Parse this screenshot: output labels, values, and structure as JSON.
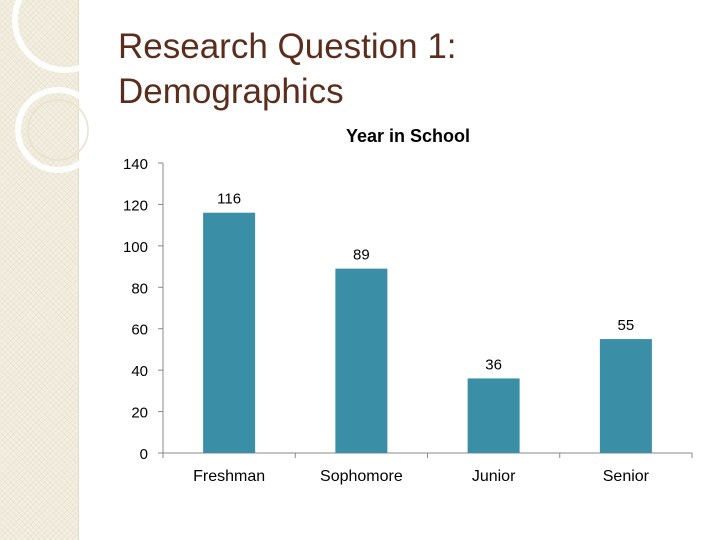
{
  "slide": {
    "title_line1": "Research Question 1:",
    "title_line2": "Demographics"
  },
  "colors": {
    "bar": "#3a8fa6",
    "title": "#5a2d1c",
    "axis": "#888888"
  },
  "chart_data": {
    "type": "bar",
    "title": "Year in School",
    "categories": [
      "Freshman",
      "Sophomore",
      "Junior",
      "Senior"
    ],
    "values": [
      116,
      89,
      36,
      55
    ],
    "data_labels": [
      "116",
      "89",
      "36",
      "55"
    ],
    "ylim": [
      0,
      140
    ],
    "yticks": [
      0,
      20,
      40,
      60,
      80,
      100,
      120,
      140
    ],
    "xlabel": "",
    "ylabel": "",
    "grid": false,
    "legend": "none"
  }
}
